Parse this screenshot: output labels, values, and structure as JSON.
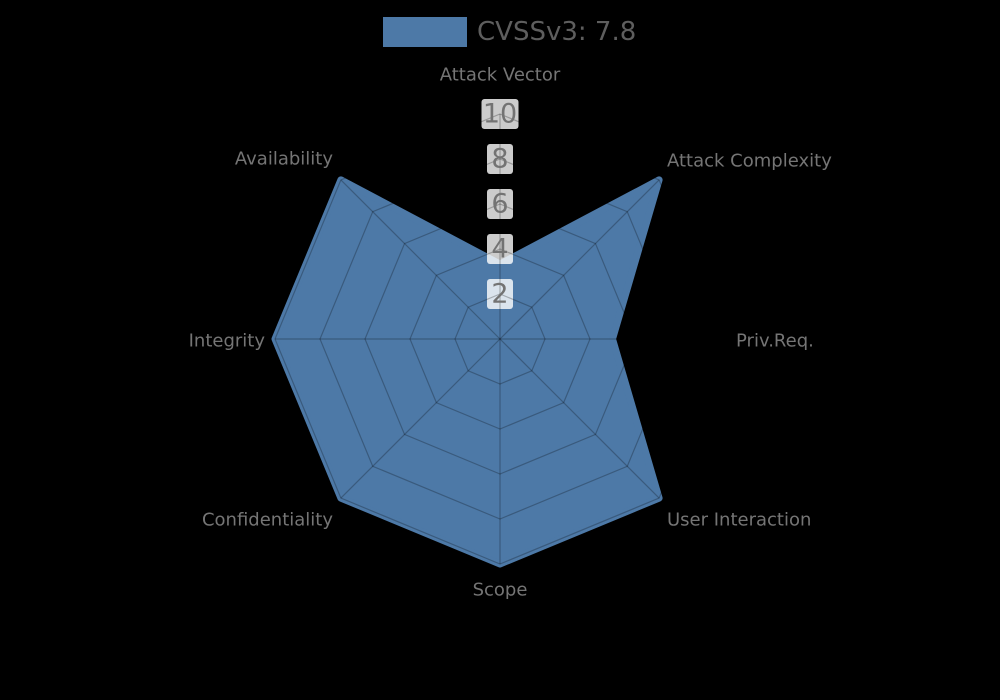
{
  "legend": {
    "label": "CVSSv3: 7.8",
    "swatch_color": "#4d79a7"
  },
  "chart_data": {
    "type": "radar",
    "title": "CVSSv3: 7.8",
    "categories": [
      "Attack Vector",
      "Attack Complexity",
      "Priv.Req.",
      "User Interaction",
      "Scope",
      "Confidentiality",
      "Integrity",
      "Availability"
    ],
    "series": [
      {
        "name": "CVSSv3: 7.8",
        "values": [
          3.33,
          10,
          5,
          10,
          10,
          10,
          10,
          10
        ]
      }
    ],
    "ticks": [
      2,
      4,
      6,
      8,
      10
    ],
    "range": [
      0,
      10
    ],
    "grid": "on",
    "grid_shape": "polygon",
    "legend_position": "top-center",
    "colors": {
      "series_fill": "#4d79a7",
      "background": "#000000",
      "axis_label_text": "#757575",
      "tick_text": "#737373",
      "tick_box_bg": "rgba(255,255,255,0.8)",
      "gridline": "rgba(0,0,0,0.25)",
      "legend_text": "#5e5e5e"
    }
  }
}
